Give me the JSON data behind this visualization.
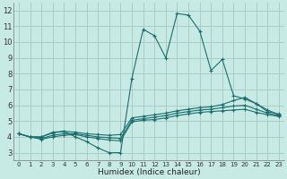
{
  "xlabel": "Humidex (Indice chaleur)",
  "background_color": "#c8eae5",
  "grid_color": "#aaccc7",
  "line_color": "#1a6e6e",
  "xlim": [
    -0.5,
    23.5
  ],
  "ylim": [
    2.5,
    12.5
  ],
  "xticks": [
    0,
    1,
    2,
    3,
    4,
    5,
    6,
    7,
    8,
    9,
    10,
    11,
    12,
    13,
    14,
    15,
    16,
    17,
    18,
    19,
    20,
    21,
    22,
    23
  ],
  "yticks": [
    3,
    4,
    5,
    6,
    7,
    8,
    9,
    10,
    11,
    12
  ],
  "series": [
    [
      4.2,
      4.0,
      4.0,
      4.3,
      4.35,
      4.0,
      3.7,
      3.3,
      3.0,
      3.0,
      7.7,
      10.8,
      10.4,
      9.0,
      11.8,
      11.7,
      10.7,
      8.2,
      8.9,
      6.6,
      6.4,
      6.1,
      5.7,
      5.4
    ],
    [
      4.2,
      4.0,
      4.0,
      4.25,
      4.35,
      4.3,
      4.2,
      4.15,
      4.1,
      4.15,
      5.2,
      5.3,
      5.4,
      5.5,
      5.65,
      5.75,
      5.85,
      5.9,
      6.05,
      6.3,
      6.5,
      6.1,
      5.6,
      5.45
    ],
    [
      4.2,
      4.0,
      3.9,
      4.1,
      4.2,
      4.2,
      4.1,
      4.0,
      3.95,
      3.9,
      5.05,
      5.15,
      5.25,
      5.35,
      5.5,
      5.6,
      5.7,
      5.75,
      5.85,
      5.95,
      6.0,
      5.75,
      5.5,
      5.35
    ],
    [
      4.2,
      4.0,
      3.85,
      4.0,
      4.1,
      4.15,
      4.0,
      3.9,
      3.8,
      3.75,
      4.95,
      5.05,
      5.1,
      5.2,
      5.35,
      5.45,
      5.55,
      5.6,
      5.65,
      5.7,
      5.75,
      5.55,
      5.4,
      5.3
    ]
  ]
}
